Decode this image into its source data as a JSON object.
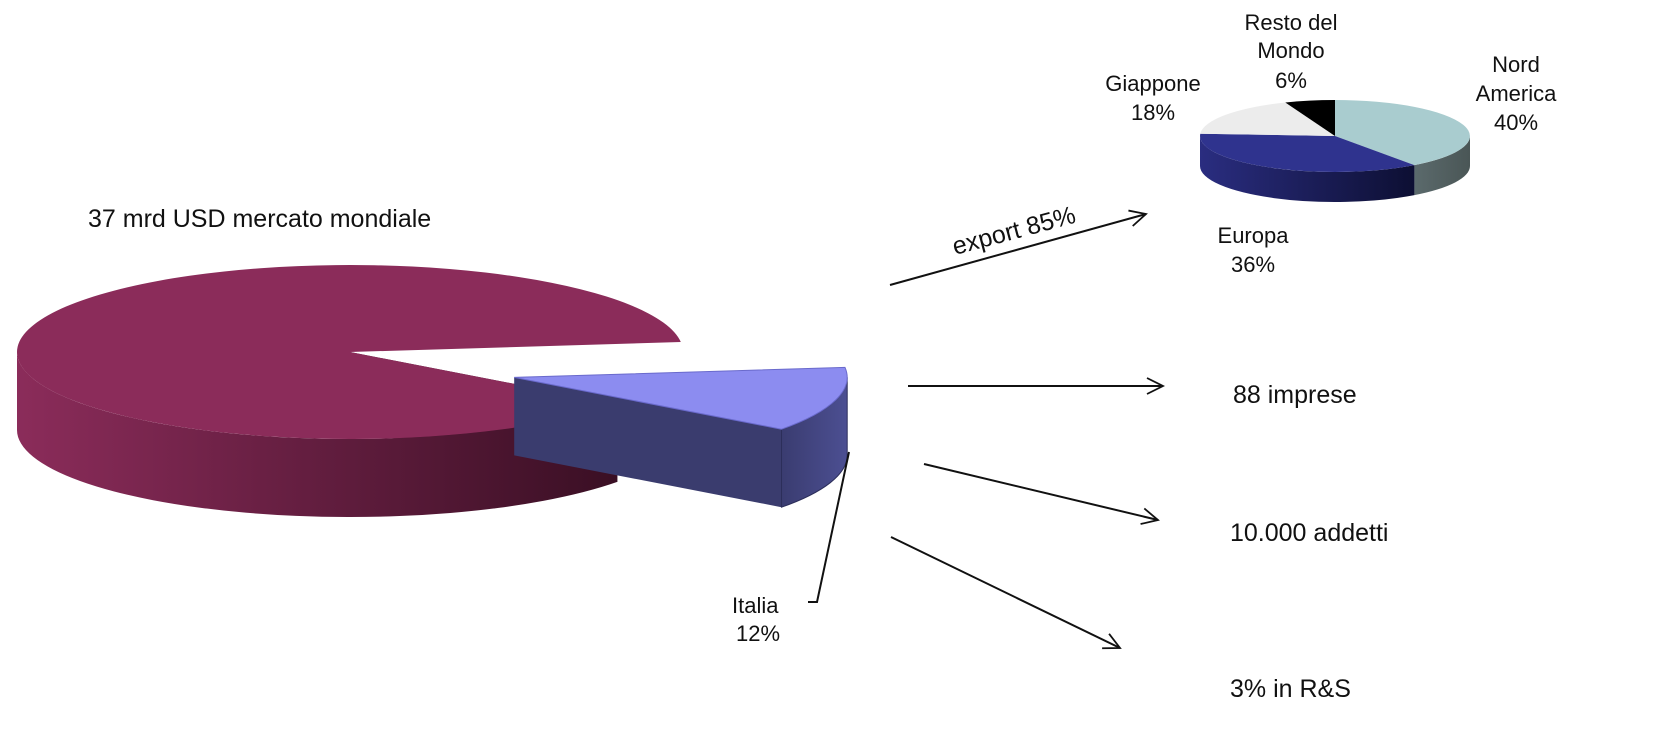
{
  "chart_data": [
    {
      "type": "pie",
      "title": "37 mrd  USD  mercato mondiale",
      "slices": [
        {
          "label": "Italia",
          "value": 12,
          "value_label": "12%",
          "color": "#8c8cf0",
          "exploded": true
        },
        {
          "label": "",
          "value": 88,
          "value_label": "",
          "color": "#8b2c5a",
          "exploded": false
        }
      ]
    },
    {
      "type": "pie",
      "title": "",
      "slices": [
        {
          "label": "Nord America",
          "value": 40,
          "value_label": "40%",
          "color": "#a9cccf"
        },
        {
          "label": "Europa",
          "value": 36,
          "value_label": "36%",
          "color": "#2f338e"
        },
        {
          "label": "Giappone",
          "value": 18,
          "value_label": "18%",
          "color": "#ececec"
        },
        {
          "label": "Resto del Mondo",
          "value": 6,
          "value_label": "6%",
          "color": "#000000"
        }
      ]
    }
  ],
  "annotations": {
    "export": "export 85%",
    "imprese": "88 imprese",
    "addetti": "10.000 addetti",
    "rs": "3% in R&S"
  }
}
